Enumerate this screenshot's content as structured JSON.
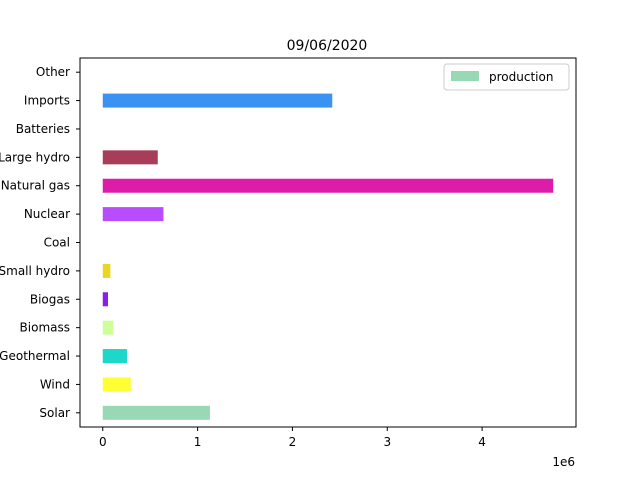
{
  "chart_data": {
    "type": "bar",
    "orientation": "horizontal",
    "title": "09/06/2020",
    "xlabel": "",
    "ylabel": "",
    "x_offset_label": "1e6",
    "xlim": [
      -240000,
      4990000
    ],
    "xticks": [
      0,
      1000000,
      2000000,
      3000000,
      4000000
    ],
    "xtick_labels": [
      "0",
      "1",
      "2",
      "3",
      "4"
    ],
    "categories": [
      "Solar",
      "Wind",
      "Geothermal",
      "Biomass",
      "Biogas",
      "Small hydro",
      "Coal",
      "Nuclear",
      "Natural gas",
      "Large hydro",
      "Batteries",
      "Imports",
      "Other"
    ],
    "values": [
      1130000,
      295000,
      255000,
      110000,
      55000,
      80000,
      0,
      640000,
      4750000,
      580000,
      0,
      2420000,
      0
    ],
    "colors": [
      "#99d8b4",
      "#ffff33",
      "#1dd8c8",
      "#ccff99",
      "#8a1ee6",
      "#e8d524",
      "#888888",
      "#b84dff",
      "#dd1daa",
      "#a83d5a",
      "#888888",
      "#3a93f2",
      "#888888"
    ],
    "legend": {
      "entries": [
        "production"
      ],
      "position": "top-right",
      "swatch_color": "#99d8b4"
    },
    "grid": false
  }
}
